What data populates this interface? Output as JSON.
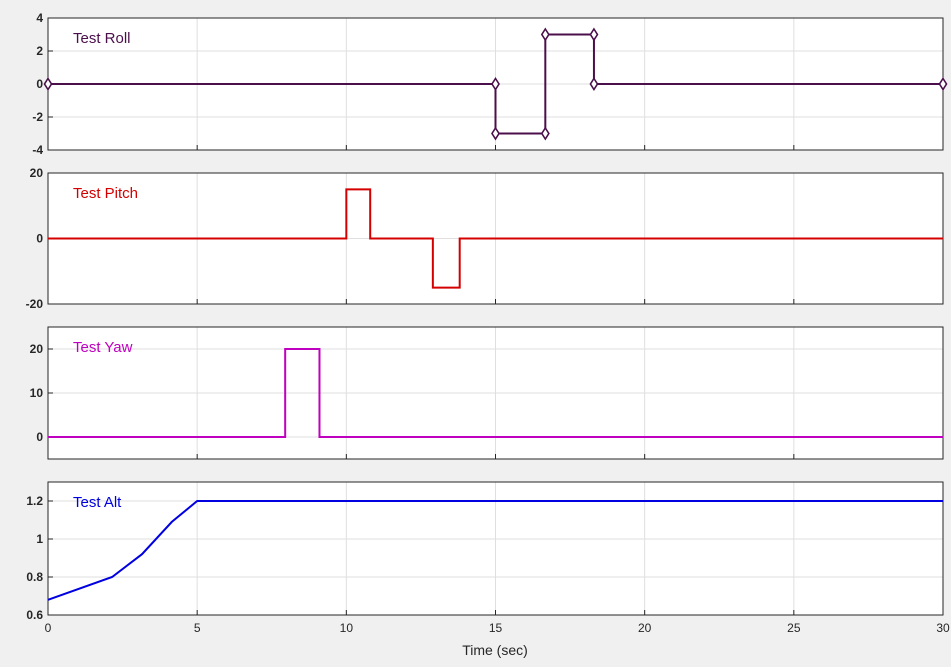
{
  "chart_data": [
    {
      "type": "line",
      "series_label": "Test Roll",
      "color": "#4b0f4b",
      "markers": true,
      "ylim": [
        -4,
        4
      ],
      "yticks": [
        -4,
        -2,
        0,
        2,
        4
      ],
      "xlim": [
        0,
        30
      ],
      "xticks": [
        0,
        5,
        10,
        15,
        20,
        25,
        30
      ],
      "grid": true,
      "x": [
        0,
        15,
        15,
        16.67,
        16.67,
        18.3,
        18.3,
        30
      ],
      "y": [
        0,
        0,
        -3,
        -3,
        3,
        3,
        0,
        0
      ]
    },
    {
      "type": "line",
      "series_label": "Test Pitch",
      "color": "#d40000",
      "markers": false,
      "ylim": [
        -20,
        20
      ],
      "yticks": [
        -20,
        0,
        20
      ],
      "xlim": [
        0,
        30
      ],
      "xticks": [
        0,
        5,
        10,
        15,
        20,
        25,
        30
      ],
      "grid": true,
      "x": [
        0,
        10,
        10,
        10.8,
        10.8,
        12.9,
        12.9,
        13.8,
        13.8,
        30
      ],
      "y": [
        0,
        0,
        15,
        15,
        0,
        0,
        -15,
        -15,
        0,
        0
      ]
    },
    {
      "type": "line",
      "series_label": "Test Yaw",
      "color": "#c000c0",
      "markers": false,
      "ylim": [
        -5,
        25
      ],
      "yticks": [
        0,
        10,
        20
      ],
      "xlim": [
        0,
        30
      ],
      "xticks": [
        0,
        5,
        10,
        15,
        20,
        25,
        30
      ],
      "grid": true,
      "x": [
        0,
        7.95,
        7.95,
        9.1,
        9.1,
        30
      ],
      "y": [
        0,
        0,
        20,
        20,
        0,
        0
      ]
    },
    {
      "type": "line",
      "series_label": "Test Alt",
      "color": "#0000e0",
      "markers": false,
      "ylim": [
        0.6,
        1.3
      ],
      "yticks": [
        0.6,
        0.8,
        1.0,
        1.2
      ],
      "ytick_labels": [
        "0.6",
        "0.8",
        "1",
        "1.2"
      ],
      "xlim": [
        0,
        30
      ],
      "xticks": [
        0,
        5,
        10,
        15,
        20,
        25,
        30
      ],
      "show_xtick_labels": true,
      "xlabel": "Time (sec)",
      "grid": true,
      "x": [
        0,
        2.15,
        3.15,
        4.15,
        5,
        30
      ],
      "y": [
        0.68,
        0.8,
        0.92,
        1.09,
        1.2,
        1.2
      ]
    }
  ]
}
